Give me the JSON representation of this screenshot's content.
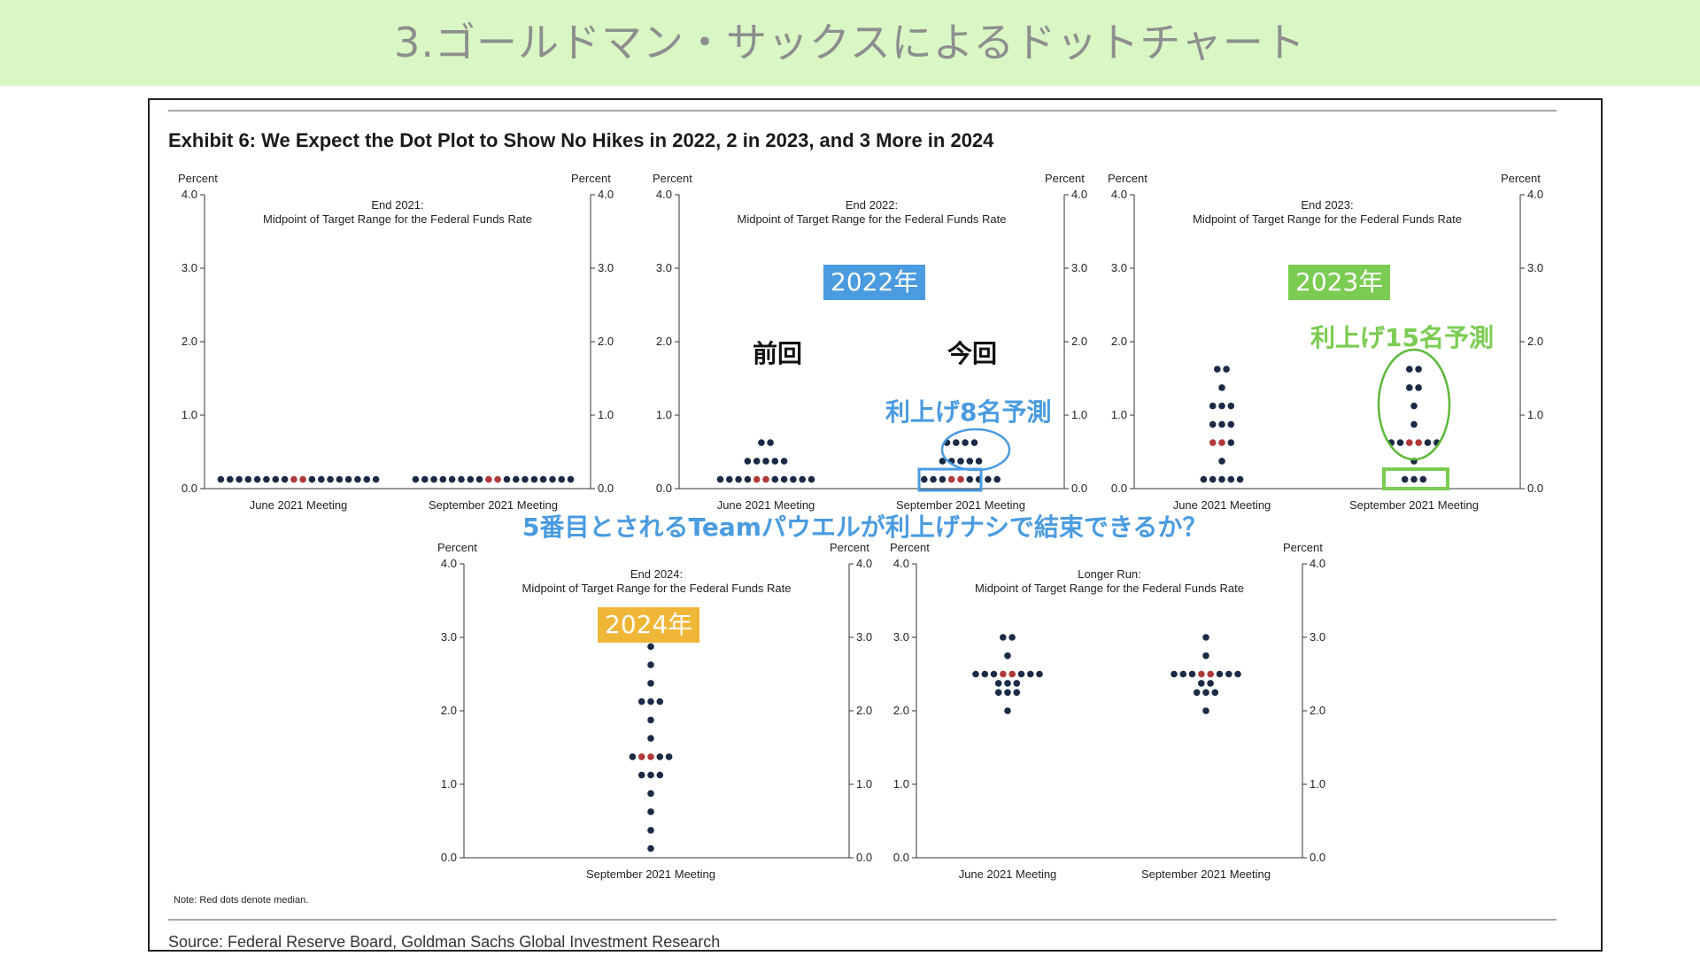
{
  "header": {
    "title": "3.ゴールドマン・サックスによるドットチャート"
  },
  "exhibit_title": "Exhibit 6: We Expect the Dot Plot to Show No Hikes in 2022, 2 in 2023, and 3 More in 2024",
  "note": "Note: Red dots denote median.",
  "source": "Source: Federal Reserve Board, Goldman Sachs Global Investment Research",
  "axis_unit": "Percent",
  "colors": {
    "dot": "#1b2b45",
    "median": "#b03a3a",
    "banner": "#d9f7c4",
    "blue_tag": "#4a9be0",
    "green_tag": "#7bcc52",
    "orange_tag": "#f0b638"
  },
  "annotations": {
    "tag_2022": "2022年",
    "tag_2023": "2023年",
    "tag_2024": "2024年",
    "prev": "前回",
    "curr": "今回",
    "hike8": "利上げ8名予測",
    "hike15": "利上げ15名予測",
    "question": "5番目とされるTeamパウエルが利上げナシで結束できるか？"
  },
  "chart_data": [
    {
      "type": "scatter",
      "title": "End 2021:",
      "subtitle": "Midpoint of Target Range for the Federal Funds Rate",
      "ylabel": "Percent",
      "ylim": [
        0,
        4
      ],
      "yticks": [
        "0.0",
        "1.0",
        "2.0",
        "3.0",
        "4.0"
      ],
      "categories": [
        "June 2021 Meeting",
        "September 2021 Meeting"
      ],
      "series": [
        {
          "category": "June 2021 Meeting",
          "dots": [
            {
              "y": 0.125,
              "count": 18
            }
          ],
          "median": 0.125
        },
        {
          "category": "September 2021 Meeting",
          "dots": [
            {
              "y": 0.125,
              "count": 18
            }
          ],
          "median": 0.125
        }
      ]
    },
    {
      "type": "scatter",
      "title": "End 2022:",
      "subtitle": "Midpoint of Target Range for the Federal Funds Rate",
      "ylabel": "Percent",
      "ylim": [
        0,
        4
      ],
      "yticks": [
        "0.0",
        "1.0",
        "2.0",
        "3.0",
        "4.0"
      ],
      "categories": [
        "June 2021 Meeting",
        "September 2021 Meeting"
      ],
      "series": [
        {
          "category": "June 2021 Meeting",
          "dots": [
            {
              "y": 0.125,
              "count": 11
            },
            {
              "y": 0.375,
              "count": 5
            },
            {
              "y": 0.625,
              "count": 2
            }
          ],
          "median": 0.125
        },
        {
          "category": "September 2021 Meeting",
          "dots": [
            {
              "y": 0.125,
              "count": 9
            },
            {
              "y": 0.375,
              "count": 5
            },
            {
              "y": 0.625,
              "count": 4
            }
          ],
          "median": 0.125
        }
      ]
    },
    {
      "type": "scatter",
      "title": "End 2023:",
      "subtitle": "Midpoint of Target Range for the Federal Funds Rate",
      "ylabel": "Percent",
      "ylim": [
        0,
        4
      ],
      "yticks": [
        "0.0",
        "1.0",
        "2.0",
        "3.0",
        "4.0"
      ],
      "categories": [
        "June 2021 Meeting",
        "September 2021 Meeting"
      ],
      "series": [
        {
          "category": "June 2021 Meeting",
          "dots": [
            {
              "y": 0.125,
              "count": 5
            },
            {
              "y": 0.375,
              "count": 1
            },
            {
              "y": 0.625,
              "count": 3
            },
            {
              "y": 0.875,
              "count": 3
            },
            {
              "y": 1.125,
              "count": 3
            },
            {
              "y": 1.375,
              "count": 1
            },
            {
              "y": 1.625,
              "count": 2
            }
          ],
          "median": 0.625
        },
        {
          "category": "September 2021 Meeting",
          "dots": [
            {
              "y": 0.125,
              "count": 3
            },
            {
              "y": 0.375,
              "count": 1
            },
            {
              "y": 0.625,
              "count": 6
            },
            {
              "y": 0.875,
              "count": 1
            },
            {
              "y": 1.125,
              "count": 1
            },
            {
              "y": 1.375,
              "count": 2
            },
            {
              "y": 1.625,
              "count": 2
            }
          ],
          "median": 0.625
        }
      ]
    },
    {
      "type": "scatter",
      "title": "End 2024:",
      "subtitle": "Midpoint of Target Range for the Federal Funds Rate",
      "ylabel": "Percent",
      "ylim": [
        0,
        4
      ],
      "yticks": [
        "0.0",
        "1.0",
        "2.0",
        "3.0",
        "4.0"
      ],
      "categories": [
        "September 2021 Meeting"
      ],
      "series": [
        {
          "category": "September 2021 Meeting",
          "dots": [
            {
              "y": 0.125,
              "count": 1
            },
            {
              "y": 0.375,
              "count": 1
            },
            {
              "y": 0.625,
              "count": 1
            },
            {
              "y": 0.875,
              "count": 1
            },
            {
              "y": 1.125,
              "count": 3
            },
            {
              "y": 1.375,
              "count": 5
            },
            {
              "y": 1.625,
              "count": 1
            },
            {
              "y": 1.875,
              "count": 1
            },
            {
              "y": 2.125,
              "count": 3
            },
            {
              "y": 2.375,
              "count": 1
            },
            {
              "y": 2.625,
              "count": 1
            },
            {
              "y": 2.875,
              "count": 1
            }
          ],
          "median": 1.375
        }
      ]
    },
    {
      "type": "scatter",
      "title": "Longer Run:",
      "subtitle": "Midpoint of Target Range for the Federal Funds Rate",
      "ylabel": "Percent",
      "ylim": [
        0,
        4
      ],
      "yticks": [
        "0.0",
        "1.0",
        "2.0",
        "3.0",
        "4.0"
      ],
      "categories": [
        "June 2021 Meeting",
        "September 2021 Meeting"
      ],
      "series": [
        {
          "category": "June 2021 Meeting",
          "dots": [
            {
              "y": 2.0,
              "count": 1
            },
            {
              "y": 2.25,
              "count": 3
            },
            {
              "y": 2.375,
              "count": 3
            },
            {
              "y": 2.5,
              "count": 8
            },
            {
              "y": 2.75,
              "count": 1
            },
            {
              "y": 3.0,
              "count": 2
            }
          ],
          "median": 2.5
        },
        {
          "category": "September 2021 Meeting",
          "dots": [
            {
              "y": 2.0,
              "count": 1
            },
            {
              "y": 2.25,
              "count": 3
            },
            {
              "y": 2.375,
              "count": 2
            },
            {
              "y": 2.5,
              "count": 8
            },
            {
              "y": 2.75,
              "count": 1
            },
            {
              "y": 3.0,
              "count": 1
            }
          ],
          "median": 2.5
        }
      ]
    }
  ]
}
